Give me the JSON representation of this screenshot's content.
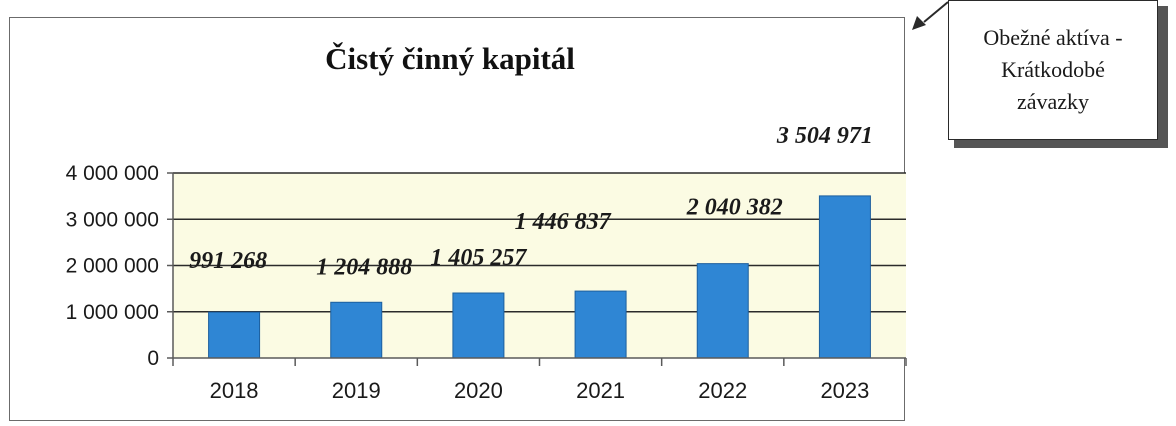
{
  "chart_data": {
    "type": "bar",
    "title": "Čistý činný kapitál",
    "categories": [
      "2018",
      "2019",
      "2020",
      "2021",
      "2022",
      "2023"
    ],
    "values": [
      991268,
      1204888,
      1405257,
      1446837,
      2040382,
      3504971
    ],
    "data_labels": [
      "991 268",
      "1 204 888",
      "1 405 257",
      "1 446 837",
      "2 040 382",
      "3 504 971"
    ],
    "y_ticks": [
      "0",
      "1 000 000",
      "2 000 000",
      "3 000 000",
      "4 000 000"
    ],
    "y_tick_values": [
      0,
      1000000,
      2000000,
      3000000,
      4000000
    ],
    "ylim": [
      0,
      4000000
    ],
    "grid": true,
    "xlabel": "",
    "ylabel": "",
    "colors": {
      "bar": "#2f86d4",
      "bar_edge": "#1d5f9e",
      "plot_bg": "#fbfbe3",
      "grid": "#2b2b2b",
      "axis": "#5a5a5a"
    }
  },
  "callout": {
    "text": "Obežné aktíva -\nKrátkodobé\nzávazky"
  }
}
